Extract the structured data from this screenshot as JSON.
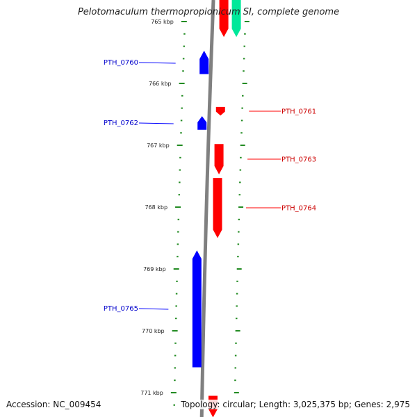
{
  "title": "Pelotomaculum thermopropionicum SI, complete genome",
  "footer": {
    "accession": "Accession: NC_009454",
    "summary": "Topology: circular; Length: 3,025,375 bp; Genes: 2,975"
  },
  "colors": {
    "forward": "#ff0000",
    "reverse": "#0000ff",
    "rna": "#00e89a",
    "backbone": "#808080",
    "ticks": "#228b22"
  },
  "ruler": [
    {
      "label": "765 kbp",
      "kb": 765
    },
    {
      "label": "766 kbp",
      "kb": 766
    },
    {
      "label": "767 kbp",
      "kb": 767
    },
    {
      "label": "768 kbp",
      "kb": 768
    },
    {
      "label": "769 kbp",
      "kb": 769
    },
    {
      "label": "770 kbp",
      "kb": 770
    },
    {
      "label": "771 kbp",
      "kb": 771
    }
  ],
  "genes": [
    {
      "name": "PTH_0760",
      "strand": "-",
      "start_kb": 765.47,
      "end_kb": 765.85
    },
    {
      "name": "PTH_0761",
      "strand": "+",
      "start_kb": 766.38,
      "end_kb": 766.52
    },
    {
      "name": "PTH_0762",
      "strand": "-",
      "start_kb": 766.53,
      "end_kb": 766.75
    },
    {
      "name": "PTH_0763",
      "strand": "+",
      "start_kb": 766.98,
      "end_kb": 767.47
    },
    {
      "name": "PTH_0764",
      "strand": "+",
      "start_kb": 767.53,
      "end_kb": 768.5
    },
    {
      "name": "PTH_0765",
      "strand": "-",
      "start_kb": 768.7,
      "end_kb": 770.59
    }
  ],
  "unlabeled_features": [
    {
      "strand": "+",
      "type": "gene",
      "start_kb": 764.6,
      "end_kb": 765.25
    },
    {
      "strand": "+",
      "type": "rna",
      "start_kb": 764.6,
      "end_kb": 765.25
    },
    {
      "strand": "+",
      "type": "gene",
      "start_kb": 771.05,
      "end_kb": 771.4
    }
  ]
}
